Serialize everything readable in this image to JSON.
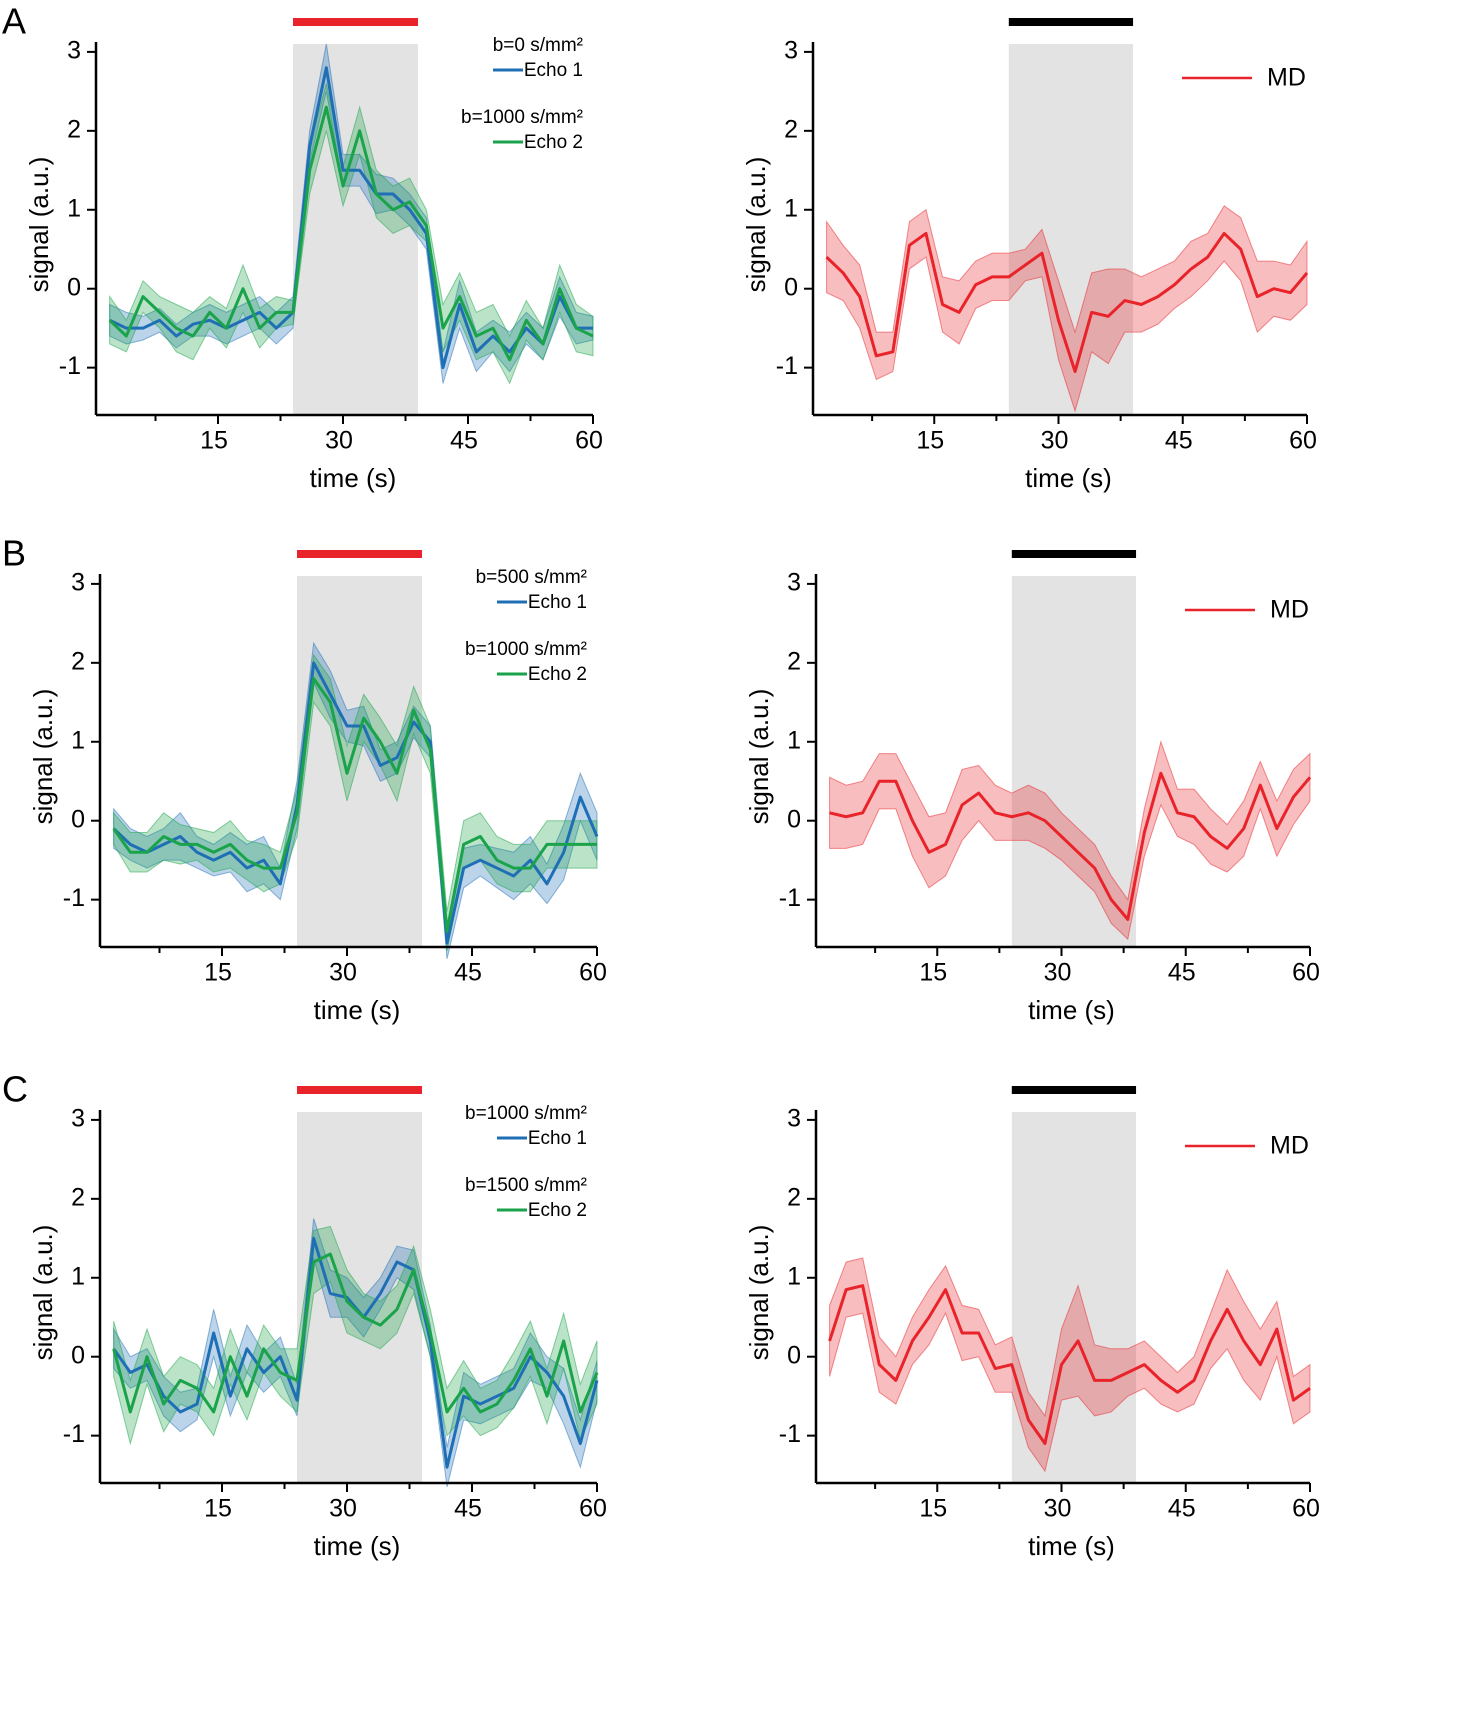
{
  "chart_data": [
    {
      "type": "line",
      "panel_label": "A",
      "xlabel": "time (s)",
      "ylabel": "signal (a.u.)",
      "x": [
        2,
        4,
        6,
        8,
        10,
        12,
        14,
        16,
        18,
        20,
        22,
        24,
        26,
        28,
        30,
        32,
        34,
        36,
        38,
        40,
        42,
        44,
        46,
        48,
        50,
        52,
        54,
        56,
        58,
        60
      ],
      "xlim": [
        0,
        60
      ],
      "ylim": [
        -1.6,
        3.1
      ],
      "xticks": [
        15,
        30,
        45,
        60
      ],
      "xminorticks": [
        7.5,
        22.5,
        37.5,
        52.5
      ],
      "yticks": [
        -1,
        0,
        1,
        2,
        3
      ],
      "stimulus": [
        24,
        39
      ],
      "stimulus_color": "#e8232a",
      "legend": "upper right",
      "series": [
        {
          "legend_title": "b=0 s/mm²",
          "name": "Echo 1",
          "color": "#1f6fb5",
          "values": [
            -0.4,
            -0.5,
            -0.5,
            -0.4,
            -0.6,
            -0.45,
            -0.4,
            -0.5,
            -0.4,
            -0.3,
            -0.5,
            -0.3,
            1.8,
            2.8,
            1.5,
            1.5,
            1.2,
            1.2,
            1.0,
            0.7,
            -1.0,
            -0.2,
            -0.8,
            -0.6,
            -0.8,
            -0.5,
            -0.7,
            -0.1,
            -0.5,
            -0.5
          ],
          "errors": [
            0.2,
            0.2,
            0.15,
            0.15,
            0.15,
            0.15,
            0.2,
            0.2,
            0.2,
            0.2,
            0.2,
            0.2,
            0.2,
            0.3,
            0.2,
            0.2,
            0.25,
            0.2,
            0.2,
            0.2,
            0.2,
            0.3,
            0.25,
            0.2,
            0.25,
            0.2,
            0.2,
            0.25,
            0.2,
            0.15
          ]
        },
        {
          "legend_title": "b=1000 s/mm²",
          "name": "Echo 2",
          "color": "#1aa34a",
          "values": [
            -0.4,
            -0.6,
            -0.1,
            -0.3,
            -0.5,
            -0.6,
            -0.3,
            -0.5,
            0.0,
            -0.5,
            -0.3,
            -0.3,
            1.5,
            2.3,
            1.3,
            2.0,
            1.2,
            1.0,
            1.1,
            0.8,
            -0.5,
            -0.1,
            -0.6,
            -0.5,
            -0.9,
            -0.4,
            -0.7,
            0.0,
            -0.5,
            -0.6
          ],
          "errors": [
            0.3,
            0.2,
            0.2,
            0.2,
            0.3,
            0.3,
            0.2,
            0.25,
            0.3,
            0.25,
            0.2,
            0.15,
            0.3,
            0.3,
            0.25,
            0.3,
            0.3,
            0.3,
            0.3,
            0.2,
            0.3,
            0.3,
            0.3,
            0.3,
            0.3,
            0.25,
            0.2,
            0.3,
            0.3,
            0.25
          ]
        }
      ]
    },
    {
      "type": "line",
      "xlabel": "time (s)",
      "ylabel": "signal (a.u.)",
      "x": [
        2,
        4,
        6,
        8,
        10,
        12,
        14,
        16,
        18,
        20,
        22,
        24,
        26,
        28,
        30,
        32,
        34,
        36,
        38,
        40,
        42,
        44,
        46,
        48,
        50,
        52,
        54,
        56,
        58,
        60
      ],
      "xlim": [
        0,
        60
      ],
      "ylim": [
        -1.6,
        3.1
      ],
      "xticks": [
        15,
        30,
        45,
        60
      ],
      "xminorticks": [
        7.5,
        22.5,
        37.5,
        52.5
      ],
      "yticks": [
        -1,
        0,
        1,
        2,
        3
      ],
      "stimulus": [
        24,
        39
      ],
      "stimulus_color": "#000000",
      "legend": "upper right",
      "series": [
        {
          "name": "MD",
          "color": "#e8232a",
          "values": [
            0.4,
            0.2,
            -0.1,
            -0.85,
            -0.8,
            0.55,
            0.7,
            -0.2,
            -0.3,
            0.05,
            0.15,
            0.15,
            0.3,
            0.45,
            -0.4,
            -1.05,
            -0.3,
            -0.35,
            -0.15,
            -0.2,
            -0.1,
            0.05,
            0.25,
            0.4,
            0.7,
            0.5,
            -0.1,
            0.0,
            -0.05,
            0.2
          ],
          "errors": [
            0.45,
            0.35,
            0.4,
            0.3,
            0.25,
            0.3,
            0.3,
            0.35,
            0.4,
            0.3,
            0.3,
            0.3,
            0.2,
            0.3,
            0.5,
            0.5,
            0.5,
            0.6,
            0.4,
            0.35,
            0.35,
            0.3,
            0.35,
            0.3,
            0.35,
            0.4,
            0.45,
            0.35,
            0.35,
            0.4
          ]
        }
      ]
    },
    {
      "type": "line",
      "panel_label": "B",
      "xlabel": "time (s)",
      "ylabel": "signal (a.u.)",
      "x": [
        2,
        4,
        6,
        8,
        10,
        12,
        14,
        16,
        18,
        20,
        22,
        24,
        26,
        28,
        30,
        32,
        34,
        36,
        38,
        40,
        42,
        44,
        46,
        48,
        50,
        52,
        54,
        56,
        58,
        60
      ],
      "xlim": [
        0,
        60
      ],
      "ylim": [
        -1.6,
        3.1
      ],
      "xticks": [
        15,
        30,
        45,
        60
      ],
      "xminorticks": [
        7.5,
        22.5,
        37.5,
        52.5
      ],
      "yticks": [
        -1,
        0,
        1,
        2,
        3
      ],
      "stimulus": [
        24,
        39
      ],
      "stimulus_color": "#e8232a",
      "legend": "upper right",
      "series": [
        {
          "legend_title": "b=500 s/mm²",
          "name": "Echo 1",
          "color": "#1f6fb5",
          "values": [
            -0.1,
            -0.3,
            -0.4,
            -0.3,
            -0.2,
            -0.4,
            -0.5,
            -0.4,
            -0.6,
            -0.5,
            -0.8,
            0.2,
            2.0,
            1.6,
            1.2,
            1.2,
            0.7,
            0.8,
            1.25,
            1.0,
            -1.55,
            -0.6,
            -0.5,
            -0.6,
            -0.7,
            -0.5,
            -0.8,
            -0.4,
            0.3,
            -0.2
          ],
          "errors": [
            0.25,
            0.2,
            0.2,
            0.2,
            0.3,
            0.2,
            0.2,
            0.25,
            0.3,
            0.3,
            0.2,
            0.3,
            0.25,
            0.3,
            0.2,
            0.25,
            0.2,
            0.2,
            0.2,
            0.2,
            0.2,
            0.25,
            0.2,
            0.25,
            0.3,
            0.3,
            0.25,
            0.35,
            0.3,
            0.3
          ]
        },
        {
          "legend_title": "b=1000 s/mm²",
          "name": "Echo 2",
          "color": "#1aa34a",
          "values": [
            -0.1,
            -0.4,
            -0.4,
            -0.2,
            -0.3,
            -0.3,
            -0.4,
            -0.3,
            -0.5,
            -0.6,
            -0.6,
            0.1,
            1.8,
            1.5,
            0.6,
            1.3,
            1.0,
            0.6,
            1.4,
            0.9,
            -1.4,
            -0.3,
            -0.2,
            -0.5,
            -0.6,
            -0.6,
            -0.3,
            -0.3,
            -0.3,
            -0.3
          ],
          "errors": [
            0.2,
            0.25,
            0.25,
            0.3,
            0.25,
            0.2,
            0.25,
            0.3,
            0.25,
            0.3,
            0.2,
            0.3,
            0.3,
            0.3,
            0.35,
            0.3,
            0.3,
            0.35,
            0.3,
            0.3,
            0.25,
            0.3,
            0.3,
            0.3,
            0.3,
            0.3,
            0.3,
            0.3,
            0.3,
            0.3
          ]
        }
      ]
    },
    {
      "type": "line",
      "xlabel": "time (s)",
      "ylabel": "signal (a.u.)",
      "x": [
        2,
        4,
        6,
        8,
        10,
        12,
        14,
        16,
        18,
        20,
        22,
        24,
        26,
        28,
        30,
        32,
        34,
        36,
        38,
        40,
        42,
        44,
        46,
        48,
        50,
        52,
        54,
        56,
        58,
        60
      ],
      "xlim": [
        0,
        60
      ],
      "ylim": [
        -1.6,
        3.1
      ],
      "xticks": [
        15,
        30,
        45,
        60
      ],
      "xminorticks": [
        7.5,
        22.5,
        37.5,
        52.5
      ],
      "yticks": [
        -1,
        0,
        1,
        2,
        3
      ],
      "stimulus": [
        24,
        39
      ],
      "stimulus_color": "#000000",
      "legend": "upper right",
      "series": [
        {
          "name": "MD",
          "color": "#e8232a",
          "values": [
            0.1,
            0.05,
            0.1,
            0.5,
            0.5,
            0.0,
            -0.4,
            -0.3,
            0.2,
            0.35,
            0.1,
            0.05,
            0.1,
            0.0,
            -0.2,
            -0.4,
            -0.6,
            -1.0,
            -1.25,
            -0.15,
            0.6,
            0.1,
            0.05,
            -0.2,
            -0.35,
            -0.1,
            0.45,
            -0.1,
            0.3,
            0.55
          ],
          "errors": [
            0.45,
            0.4,
            0.4,
            0.35,
            0.35,
            0.45,
            0.45,
            0.4,
            0.45,
            0.35,
            0.35,
            0.3,
            0.35,
            0.35,
            0.3,
            0.3,
            0.3,
            0.3,
            0.25,
            0.3,
            0.4,
            0.3,
            0.35,
            0.35,
            0.3,
            0.35,
            0.3,
            0.35,
            0.35,
            0.3
          ]
        }
      ]
    },
    {
      "type": "line",
      "panel_label": "C",
      "xlabel": "time (s)",
      "ylabel": "signal (a.u.)",
      "x": [
        2,
        4,
        6,
        8,
        10,
        12,
        14,
        16,
        18,
        20,
        22,
        24,
        26,
        28,
        30,
        32,
        34,
        36,
        38,
        40,
        42,
        44,
        46,
        48,
        50,
        52,
        54,
        56,
        58,
        60
      ],
      "xlim": [
        0,
        60
      ],
      "ylim": [
        -1.6,
        3.1
      ],
      "xticks": [
        15,
        30,
        45,
        60
      ],
      "xminorticks": [
        7.5,
        22.5,
        37.5,
        52.5
      ],
      "yticks": [
        -1,
        0,
        1,
        2,
        3
      ],
      "stimulus": [
        24,
        39
      ],
      "stimulus_color": "#e8232a",
      "legend": "upper right",
      "series": [
        {
          "legend_title": "b=1000 s/mm²",
          "name": "Echo 1",
          "color": "#1f6fb5",
          "values": [
            0.1,
            -0.2,
            -0.1,
            -0.5,
            -0.7,
            -0.6,
            0.3,
            -0.5,
            0.1,
            -0.2,
            0.0,
            -0.55,
            1.5,
            0.8,
            0.75,
            0.5,
            0.8,
            1.2,
            1.1,
            0.2,
            -1.4,
            -0.5,
            -0.6,
            -0.5,
            -0.4,
            0.0,
            -0.2,
            -0.5,
            -1.1,
            -0.3
          ],
          "errors": [
            0.25,
            0.2,
            0.2,
            0.25,
            0.25,
            0.2,
            0.3,
            0.25,
            0.3,
            0.25,
            0.25,
            0.2,
            0.25,
            0.3,
            0.25,
            0.25,
            0.2,
            0.2,
            0.25,
            0.2,
            0.25,
            0.3,
            0.25,
            0.25,
            0.25,
            0.3,
            0.2,
            0.35,
            0.3,
            0.25
          ]
        },
        {
          "legend_title": "b=1500 s/mm²",
          "name": "Echo 2",
          "color": "#1aa34a",
          "values": [
            0.1,
            -0.7,
            0.0,
            -0.6,
            -0.3,
            -0.4,
            -0.7,
            0.0,
            -0.5,
            0.1,
            -0.2,
            -0.3,
            1.2,
            1.3,
            0.7,
            0.5,
            0.4,
            0.6,
            1.1,
            0.3,
            -0.7,
            -0.4,
            -0.7,
            -0.6,
            -0.3,
            0.1,
            -0.5,
            0.2,
            -0.7,
            -0.2
          ],
          "errors": [
            0.35,
            0.4,
            0.35,
            0.35,
            0.3,
            0.3,
            0.3,
            0.35,
            0.3,
            0.3,
            0.3,
            0.4,
            0.4,
            0.35,
            0.4,
            0.3,
            0.3,
            0.3,
            0.3,
            0.3,
            0.3,
            0.35,
            0.3,
            0.3,
            0.35,
            0.35,
            0.35,
            0.35,
            0.35,
            0.4
          ]
        }
      ]
    },
    {
      "type": "line",
      "xlabel": "time (s)",
      "ylabel": "signal (a.u.)",
      "x": [
        2,
        4,
        6,
        8,
        10,
        12,
        14,
        16,
        18,
        20,
        22,
        24,
        26,
        28,
        30,
        32,
        34,
        36,
        38,
        40,
        42,
        44,
        46,
        48,
        50,
        52,
        54,
        56,
        58,
        60
      ],
      "xlim": [
        0,
        60
      ],
      "ylim": [
        -1.6,
        3.1
      ],
      "xticks": [
        15,
        30,
        45,
        60
      ],
      "xminorticks": [
        7.5,
        22.5,
        37.5,
        52.5
      ],
      "yticks": [
        -1,
        0,
        1,
        2,
        3
      ],
      "stimulus": [
        24,
        39
      ],
      "stimulus_color": "#000000",
      "legend": "upper right",
      "series": [
        {
          "name": "MD",
          "color": "#e8232a",
          "values": [
            0.2,
            0.85,
            0.9,
            -0.1,
            -0.3,
            0.2,
            0.5,
            0.85,
            0.3,
            0.3,
            -0.15,
            -0.1,
            -0.8,
            -1.1,
            -0.1,
            0.2,
            -0.3,
            -0.3,
            -0.2,
            -0.1,
            -0.3,
            -0.45,
            -0.3,
            0.2,
            0.6,
            0.2,
            -0.1,
            0.35,
            -0.55,
            -0.4
          ],
          "errors": [
            0.45,
            0.35,
            0.35,
            0.35,
            0.3,
            0.3,
            0.35,
            0.3,
            0.35,
            0.3,
            0.3,
            0.35,
            0.35,
            0.35,
            0.45,
            0.7,
            0.45,
            0.4,
            0.3,
            0.3,
            0.3,
            0.25,
            0.3,
            0.35,
            0.5,
            0.5,
            0.45,
            0.35,
            0.3,
            0.3
          ]
        }
      ]
    }
  ]
}
